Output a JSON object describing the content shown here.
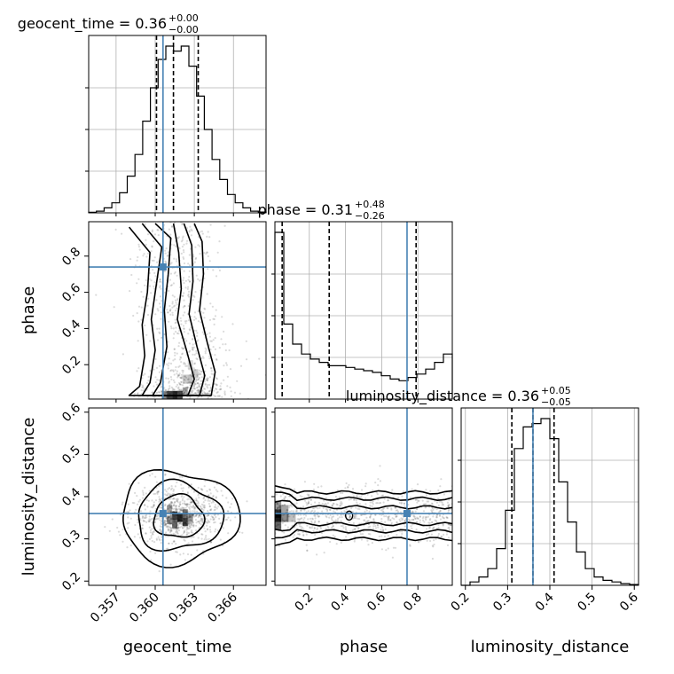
{
  "chart_data": {
    "type": "corner",
    "parameters": [
      "geocent_time",
      "phase",
      "luminosity_distance"
    ],
    "truths": {
      "geocent_time": 0.3606,
      "phase": 0.74,
      "luminosity_distance": 0.36
    },
    "truth_color": "#4682b4",
    "titles": [
      {
        "param": "geocent_time",
        "prefix": "geocent_time = 0.36",
        "plus": "+0.00",
        "minus": "−0.00"
      },
      {
        "param": "phase",
        "prefix": "phase = 0.31",
        "plus": "+0.48",
        "minus": "−0.26"
      },
      {
        "param": "luminosity_distance",
        "prefix": "luminosity_distance = 0.36",
        "plus": "+0.05",
        "minus": "−0.05"
      }
    ],
    "axis_labels": {
      "geocent_time": "geocent_time",
      "phase": "phase",
      "luminosity_distance": "luminosity_distance"
    },
    "ranges": {
      "geocent_time": [
        0.3549,
        0.3685
      ],
      "phase": [
        0.01,
        0.99
      ],
      "luminosity_distance": [
        0.19,
        0.61
      ]
    },
    "ticks": {
      "geocent_time": {
        "values": [
          0.357,
          0.36,
          0.363,
          0.366
        ],
        "labels": [
          "0.357",
          "0.360",
          "0.363",
          "0.366"
        ]
      },
      "phase": {
        "values": [
          0.2,
          0.4,
          0.6,
          0.8
        ],
        "labels": [
          "0.2",
          "0.4",
          "0.6",
          "0.8"
        ]
      },
      "luminosity_distance": {
        "values": [
          0.2,
          0.3,
          0.4,
          0.5,
          0.6
        ],
        "labels": [
          "0.2",
          "0.3",
          "0.4",
          "0.5",
          "0.6"
        ]
      }
    },
    "quantiles": {
      "geocent_time": [
        0.3601,
        0.3614,
        0.3633
      ],
      "phase": [
        0.05,
        0.31,
        0.79
      ],
      "luminosity_distance": [
        0.31,
        0.36,
        0.41
      ]
    },
    "histograms": {
      "geocent_time": [
        0.003,
        0.01,
        0.03,
        0.06,
        0.12,
        0.22,
        0.35,
        0.55,
        0.75,
        0.92,
        1.0,
        0.97,
        1.0,
        0.88,
        0.7,
        0.5,
        0.32,
        0.2,
        0.11,
        0.06,
        0.03,
        0.01,
        0.005
      ],
      "phase": [
        1.0,
        0.45,
        0.33,
        0.27,
        0.24,
        0.22,
        0.2,
        0.2,
        0.19,
        0.18,
        0.17,
        0.16,
        0.14,
        0.12,
        0.11,
        0.13,
        0.15,
        0.18,
        0.22,
        0.27
      ],
      "luminosity_distance": [
        0.0,
        0.02,
        0.05,
        0.1,
        0.22,
        0.45,
        0.82,
        0.95,
        0.97,
        1.0,
        0.88,
        0.62,
        0.38,
        0.2,
        0.1,
        0.05,
        0.03,
        0.02,
        0.01,
        0.005
      ]
    },
    "pairs": [
      {
        "x": "geocent_time",
        "y": "phase"
      },
      {
        "x": "geocent_time",
        "y": "luminosity_distance"
      },
      {
        "x": "phase",
        "y": "luminosity_distance"
      }
    ],
    "grid": true
  }
}
